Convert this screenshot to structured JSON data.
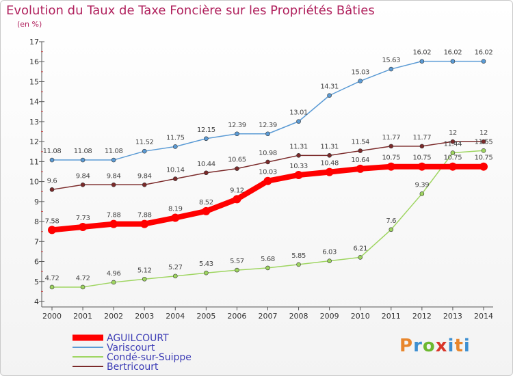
{
  "header": {
    "title": "Evolution du Taux de Taxe Foncière sur les Propriétés Bâties",
    "subtitle": "(en %)"
  },
  "logo": {
    "text": "Proxiti"
  },
  "chart_data": {
    "type": "line",
    "title": "Evolution du Taux de Taxe Foncière sur les Propriétés Bâties",
    "ylabel": "(en %)",
    "x": [
      "2000",
      "2001",
      "2002",
      "2003",
      "2004",
      "2005",
      "2006",
      "2007",
      "2008",
      "2009",
      "2010",
      "2011",
      "2012",
      "2013",
      "2014"
    ],
    "ylim": [
      4,
      17
    ],
    "yticks": [
      4,
      5,
      6,
      7,
      8,
      9,
      10,
      11,
      12,
      13,
      14,
      15,
      16,
      17
    ],
    "grid": false,
    "legend": "bottom-left",
    "series": [
      {
        "name": "AGUILCOURT",
        "color": "#ff0000",
        "values": [
          7.58,
          7.73,
          7.88,
          7.88,
          8.19,
          8.52,
          9.12,
          10.03,
          10.33,
          10.48,
          10.64,
          10.75,
          10.75,
          10.75,
          10.75
        ],
        "labels": [
          "7.58",
          "7.73",
          "7.88",
          "7.88",
          "8.19",
          "8.52",
          "9.12",
          "10.03",
          "10.33",
          "10.48",
          "10.64",
          "10.75",
          "10.75",
          "10.75",
          "10.75"
        ]
      },
      {
        "name": "Variscourt",
        "color": "#5b9bd5",
        "values": [
          11.08,
          11.08,
          11.08,
          11.52,
          11.75,
          12.15,
          12.39,
          12.39,
          13.01,
          14.31,
          15.03,
          15.63,
          16.02,
          16.02,
          16.02
        ],
        "labels": [
          "11.08",
          "11.08",
          "11.08",
          "11.52",
          "11.75",
          "12.15",
          "12.39",
          "12.39",
          "13.01",
          "14.31",
          "15.03",
          "15.63",
          "16.02",
          "16.02",
          "16.02"
        ]
      },
      {
        "name": "Condé-sur-Suippe",
        "color": "#9ed560",
        "values": [
          4.72,
          4.72,
          4.96,
          5.12,
          5.27,
          5.43,
          5.57,
          5.68,
          5.85,
          6.03,
          6.21,
          7.6,
          9.39,
          11.44,
          11.55
        ],
        "labels": [
          "4.72",
          "4.72",
          "4.96",
          "5.12",
          "5.27",
          "5.43",
          "5.57",
          "5.68",
          "5.85",
          "6.03",
          "6.21",
          "7.6",
          "9.39",
          "11.44",
          "11.55"
        ]
      },
      {
        "name": "Bertricourt",
        "color": "#7b2a2a",
        "values": [
          9.6,
          9.84,
          9.84,
          9.84,
          10.14,
          10.44,
          10.65,
          10.98,
          11.31,
          11.31,
          11.54,
          11.77,
          11.77,
          12,
          12
        ],
        "labels": [
          "9.6",
          "9.84",
          "9.84",
          "9.84",
          "10.14",
          "10.44",
          "10.65",
          "10.98",
          "11.31",
          "11.31",
          "11.54",
          "11.77",
          "11.77",
          "12",
          "12"
        ]
      }
    ]
  }
}
